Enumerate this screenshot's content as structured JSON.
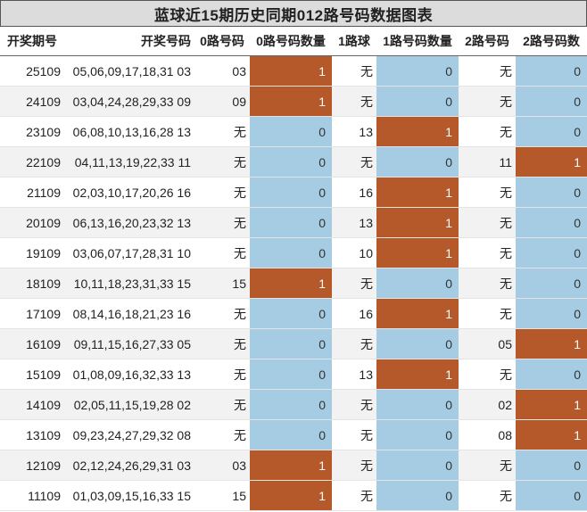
{
  "title": "蓝球近15期历史同期012路号码数据图表",
  "headers": [
    "开奖期号",
    "开奖号码",
    "0路号码",
    "0路号码数量",
    "1路球",
    "1路号码数量",
    "2路号码",
    "2路号码数"
  ],
  "rows": [
    {
      "period": "25109",
      "numbers": "05,06,09,17,18,31 03",
      "r0": "03",
      "r0c": "1",
      "r1": "无",
      "r1c": "0",
      "r2": "无",
      "r2c": "0"
    },
    {
      "period": "24109",
      "numbers": "03,04,24,28,29,33 09",
      "r0": "09",
      "r0c": "1",
      "r1": "无",
      "r1c": "0",
      "r2": "无",
      "r2c": "0"
    },
    {
      "period": "23109",
      "numbers": "06,08,10,13,16,28 13",
      "r0": "无",
      "r0c": "0",
      "r1": "13",
      "r1c": "1",
      "r2": "无",
      "r2c": "0"
    },
    {
      "period": "22109",
      "numbers": "04,11,13,19,22,33 11",
      "r0": "无",
      "r0c": "0",
      "r1": "无",
      "r1c": "0",
      "r2": "11",
      "r2c": "1"
    },
    {
      "period": "21109",
      "numbers": "02,03,10,17,20,26 16",
      "r0": "无",
      "r0c": "0",
      "r1": "16",
      "r1c": "1",
      "r2": "无",
      "r2c": "0"
    },
    {
      "period": "20109",
      "numbers": "06,13,16,20,23,32 13",
      "r0": "无",
      "r0c": "0",
      "r1": "13",
      "r1c": "1",
      "r2": "无",
      "r2c": "0"
    },
    {
      "period": "19109",
      "numbers": "03,06,07,17,28,31 10",
      "r0": "无",
      "r0c": "0",
      "r1": "10",
      "r1c": "1",
      "r2": "无",
      "r2c": "0"
    },
    {
      "period": "18109",
      "numbers": "10,11,18,23,31,33 15",
      "r0": "15",
      "r0c": "1",
      "r1": "无",
      "r1c": "0",
      "r2": "无",
      "r2c": "0"
    },
    {
      "period": "17109",
      "numbers": "08,14,16,18,21,23 16",
      "r0": "无",
      "r0c": "0",
      "r1": "16",
      "r1c": "1",
      "r2": "无",
      "r2c": "0"
    },
    {
      "period": "16109",
      "numbers": "09,11,15,16,27,33 05",
      "r0": "无",
      "r0c": "0",
      "r1": "无",
      "r1c": "0",
      "r2": "05",
      "r2c": "1"
    },
    {
      "period": "15109",
      "numbers": "01,08,09,16,32,33 13",
      "r0": "无",
      "r0c": "0",
      "r1": "13",
      "r1c": "1",
      "r2": "无",
      "r2c": "0"
    },
    {
      "period": "14109",
      "numbers": "02,05,11,15,19,28 02",
      "r0": "无",
      "r0c": "0",
      "r1": "无",
      "r1c": "0",
      "r2": "02",
      "r2c": "1"
    },
    {
      "period": "13109",
      "numbers": "09,23,24,27,29,32 08",
      "r0": "无",
      "r0c": "0",
      "r1": "无",
      "r1c": "0",
      "r2": "08",
      "r2c": "1"
    },
    {
      "period": "12109",
      "numbers": "02,12,24,26,29,31 03",
      "r0": "03",
      "r0c": "1",
      "r1": "无",
      "r1c": "0",
      "r2": "无",
      "r2c": "0"
    },
    {
      "period": "11109",
      "numbers": "01,03,09,15,16,33 15",
      "r0": "15",
      "r0c": "1",
      "r1": "无",
      "r1c": "0",
      "r2": "无",
      "r2c": "0"
    }
  ],
  "colors": {
    "count_one": "#b5592b",
    "count_zero": "#a5cce2",
    "title_bg": "#dcdcdc",
    "row_alt": "#f2f2f2"
  }
}
